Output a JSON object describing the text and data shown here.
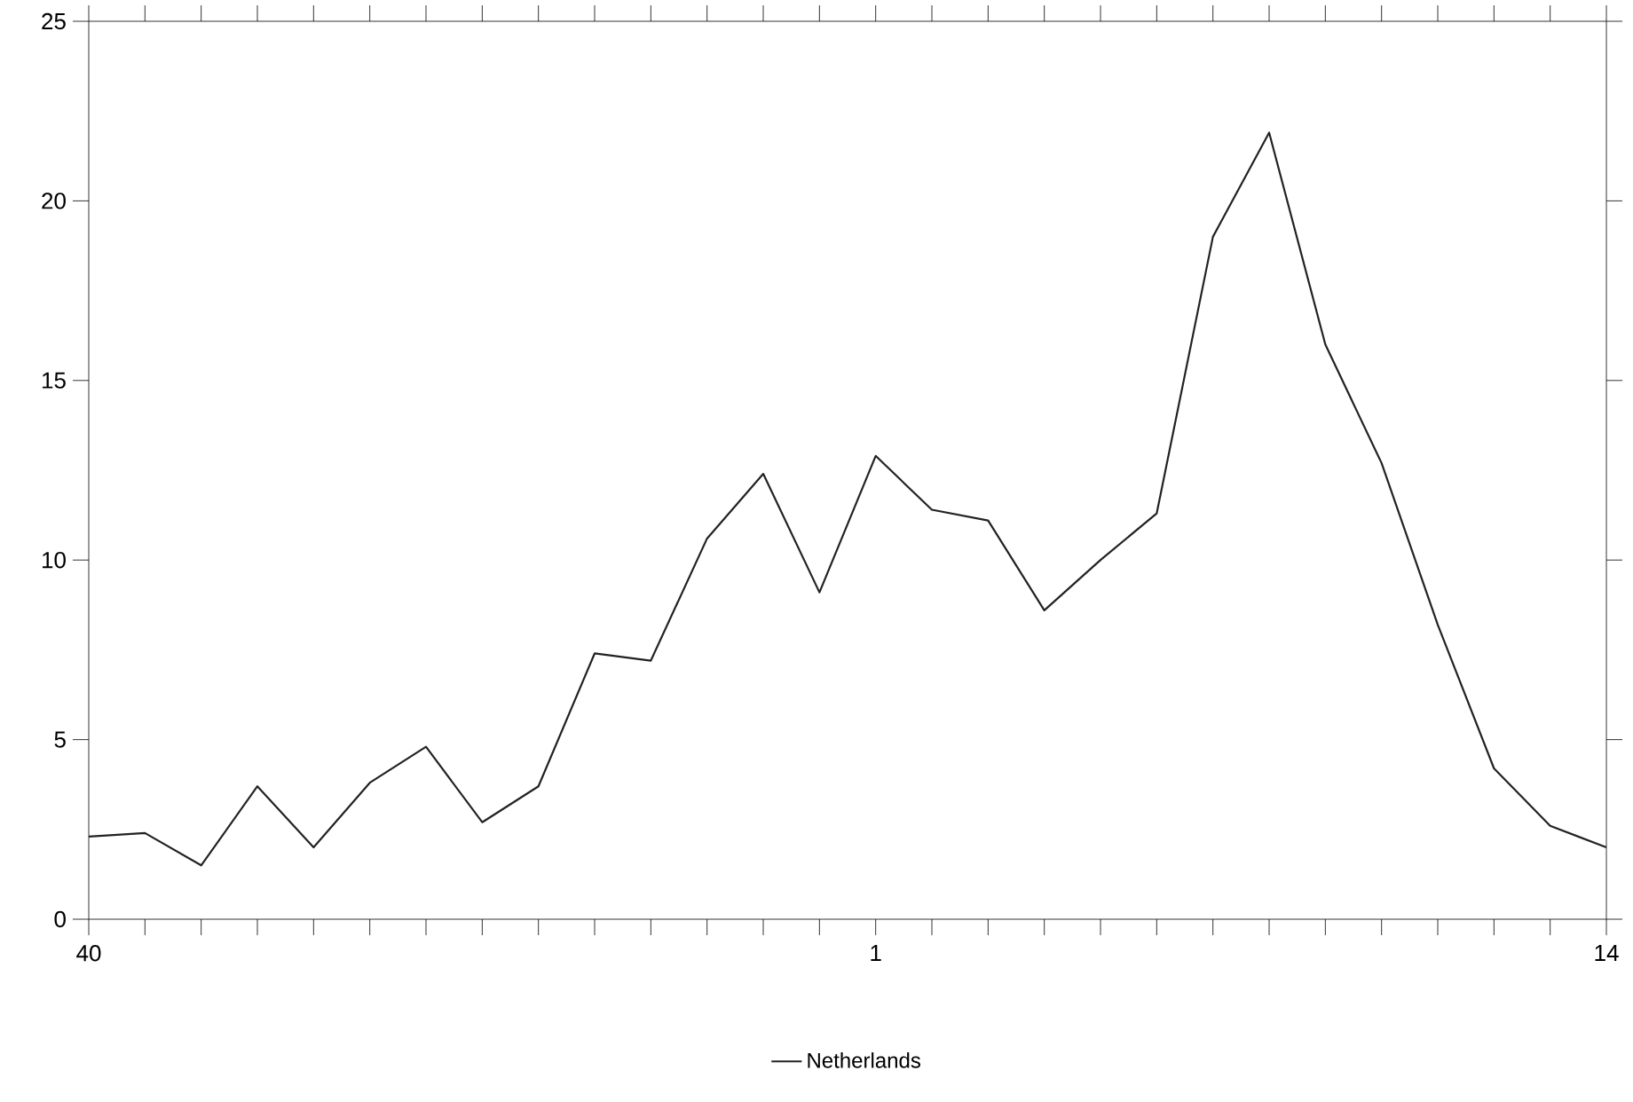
{
  "chart_data": {
    "type": "line",
    "categories": [
      "40",
      null,
      null,
      null,
      null,
      null,
      null,
      null,
      null,
      null,
      null,
      null,
      null,
      null,
      "1",
      null,
      null,
      null,
      null,
      null,
      null,
      null,
      null,
      null,
      null,
      null,
      null,
      "14"
    ],
    "series": [
      {
        "name": "Netherlands",
        "color": "#222222",
        "values": [
          2.3,
          2.4,
          1.5,
          3.7,
          2.0,
          3.8,
          4.8,
          2.7,
          3.7,
          7.4,
          7.2,
          10.6,
          12.4,
          9.1,
          12.9,
          11.4,
          11.1,
          8.6,
          10.0,
          11.3,
          19.0,
          21.9,
          16.0,
          12.7,
          8.2,
          4.2,
          2.6,
          2.0
        ]
      }
    ],
    "ylim": [
      0,
      25
    ],
    "yticks": [
      0,
      5,
      10,
      15,
      20,
      25
    ],
    "grid": false,
    "legend": "bottom",
    "marker": "none",
    "line_style": "solid"
  }
}
